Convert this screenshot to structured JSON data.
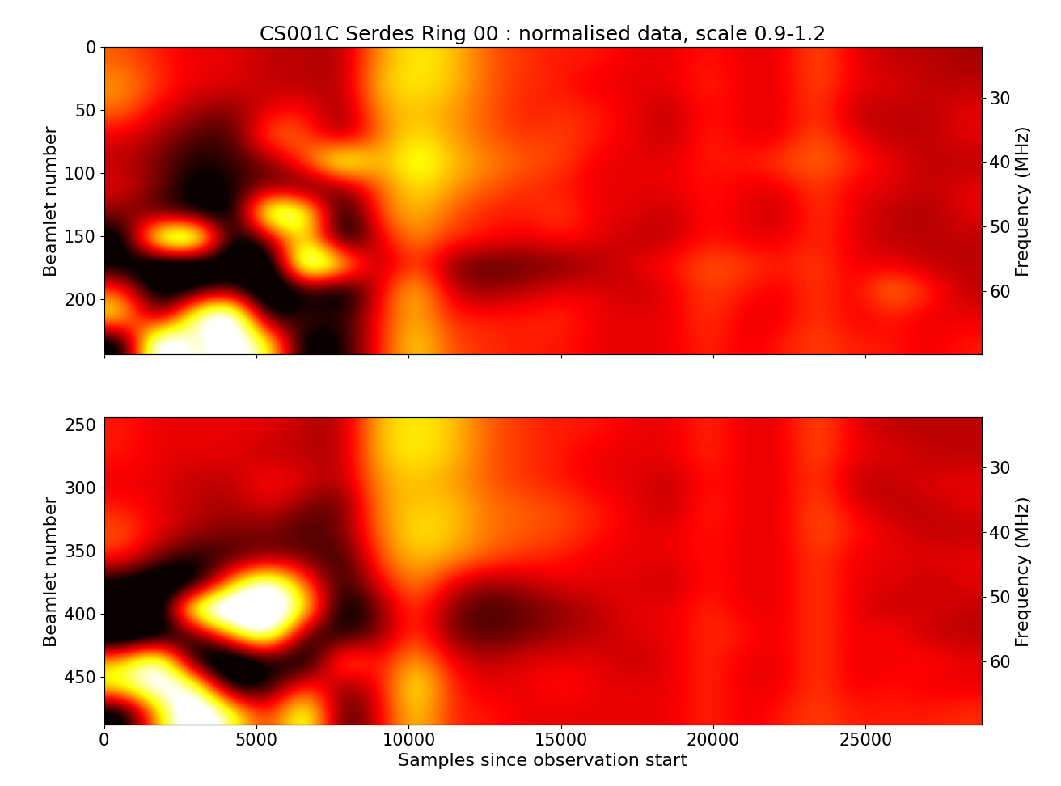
{
  "chart_data": [
    {
      "type": "heatmap",
      "title": "CS001C Serdes Ring 00 : normalised data, scale 0.9-1.2",
      "y_label": "Beamlet number",
      "y2_label": "Frequency (MHz)",
      "xlim": [
        0,
        28800
      ],
      "xticks": [
        0,
        5000,
        10000,
        15000,
        20000,
        25000
      ],
      "ylim": [
        244,
        0
      ],
      "yticks": [
        0,
        50,
        100,
        150,
        200
      ],
      "y2lim": [
        69.8,
        22.2
      ],
      "y2ticks": [
        30,
        40,
        50,
        60
      ],
      "tick_labels": "y",
      "grid": false,
      "color_range": [
        0.9,
        1.2
      ],
      "cells": [
        [
          1.05,
          1.02,
          1.0,
          1.0,
          0.98,
          0.98,
          0.97,
          1.08,
          1.12,
          1.1,
          1.05,
          1.03,
          1.02,
          1.02,
          1.0,
          1.0,
          1.02,
          1.0,
          1.0,
          1.05,
          1.0,
          0.98,
          0.98,
          0.97
        ],
        [
          1.08,
          1.03,
          1.0,
          1.0,
          0.98,
          0.98,
          0.97,
          1.1,
          1.12,
          1.1,
          1.05,
          1.03,
          1.02,
          1.0,
          1.0,
          1.0,
          1.03,
          1.0,
          1.0,
          1.05,
          1.0,
          1.0,
          0.98,
          0.98
        ],
        [
          1.06,
          1.0,
          0.97,
          0.95,
          1.0,
          1.02,
          0.95,
          1.08,
          1.1,
          1.08,
          1.05,
          1.02,
          1.03,
          1.02,
          1.0,
          0.98,
          1.02,
          1.0,
          1.0,
          1.04,
          0.98,
          0.98,
          0.98,
          1.0
        ],
        [
          1.0,
          0.97,
          0.93,
          0.92,
          1.07,
          1.05,
          0.95,
          1.06,
          1.12,
          1.08,
          1.05,
          1.03,
          1.04,
          1.02,
          1.0,
          0.98,
          1.03,
          1.0,
          1.0,
          1.05,
          1.0,
          0.98,
          0.98,
          1.0
        ],
        [
          0.98,
          0.95,
          0.9,
          0.92,
          0.95,
          1.05,
          1.2,
          1.08,
          1.15,
          1.1,
          1.07,
          1.05,
          1.04,
          1.0,
          1.0,
          1.0,
          1.02,
          1.02,
          1.04,
          1.06,
          1.03,
          1.0,
          0.98,
          0.98
        ],
        [
          1.0,
          0.95,
          0.88,
          0.9,
          0.95,
          0.9,
          0.95,
          1.05,
          1.12,
          1.08,
          1.05,
          1.03,
          1.02,
          1.0,
          1.0,
          1.0,
          1.02,
          1.0,
          1.0,
          1.04,
          1.0,
          1.0,
          0.98,
          1.0
        ],
        [
          0.96,
          0.92,
          0.88,
          0.85,
          1.25,
          1.2,
          0.85,
          1.05,
          1.1,
          1.05,
          1.02,
          1.02,
          1.04,
          1.0,
          1.0,
          0.98,
          1.02,
          1.0,
          0.98,
          1.04,
          1.0,
          0.98,
          0.97,
          1.0
        ],
        [
          0.85,
          1.25,
          1.3,
          0.85,
          0.95,
          1.15,
          0.85,
          1.0,
          1.08,
          1.03,
          1.02,
          1.0,
          1.02,
          1.0,
          0.98,
          0.98,
          1.02,
          1.0,
          1.0,
          1.03,
          1.0,
          0.98,
          0.98,
          0.98
        ],
        [
          0.88,
          0.8,
          0.8,
          0.85,
          0.8,
          1.3,
          1.15,
          0.95,
          1.05,
          0.95,
          0.93,
          0.94,
          0.95,
          0.97,
          1.0,
          1.02,
          1.05,
          1.04,
          1.02,
          1.04,
          1.0,
          1.0,
          0.98,
          0.98
        ],
        [
          1.05,
          0.85,
          0.9,
          0.95,
          0.8,
          0.9,
          0.85,
          1.0,
          1.12,
          0.98,
          0.96,
          0.98,
          1.0,
          1.0,
          0.98,
          1.0,
          1.04,
          1.02,
          1.0,
          1.04,
          1.0,
          1.08,
          1.03,
          0.98
        ],
        [
          1.15,
          0.9,
          1.2,
          1.3,
          0.85,
          0.95,
          0.9,
          1.02,
          1.1,
          1.02,
          1.02,
          1.02,
          1.03,
          1.0,
          1.0,
          1.0,
          1.04,
          1.0,
          1.0,
          1.04,
          1.0,
          1.02,
          1.0,
          1.0
        ],
        [
          0.85,
          1.3,
          1.15,
          1.25,
          1.15,
          0.85,
          0.9,
          1.02,
          1.12,
          1.04,
          1.03,
          1.02,
          1.02,
          1.0,
          1.0,
          1.0,
          1.03,
          1.0,
          1.02,
          1.04,
          1.02,
          1.02,
          1.0,
          1.02
        ]
      ]
    },
    {
      "type": "heatmap",
      "x_label": "Samples since observation start",
      "y_label": "Beamlet number",
      "y2_label": "Frequency (MHz)",
      "xlim": [
        0,
        28800
      ],
      "xticks": [
        0,
        5000,
        10000,
        15000,
        20000,
        25000
      ],
      "ylim": [
        488,
        244
      ],
      "yticks": [
        250,
        300,
        350,
        400,
        450
      ],
      "y2lim": [
        69.8,
        22.2
      ],
      "y2ticks": [
        30,
        40,
        50,
        60
      ],
      "grid": false,
      "color_range": [
        0.9,
        1.2
      ],
      "cells": [
        [
          1.02,
          1.0,
          1.0,
          1.0,
          1.0,
          0.98,
          0.97,
          1.1,
          1.12,
          1.1,
          1.05,
          1.03,
          1.02,
          1.02,
          1.0,
          1.0,
          1.03,
          1.0,
          1.0,
          1.05,
          1.0,
          0.98,
          0.98,
          0.98
        ],
        [
          1.02,
          1.0,
          1.0,
          1.0,
          0.98,
          0.98,
          0.97,
          1.1,
          1.12,
          1.1,
          1.05,
          1.03,
          1.02,
          1.0,
          1.0,
          1.0,
          1.03,
          1.0,
          1.0,
          1.05,
          1.0,
          1.0,
          0.98,
          0.98
        ],
        [
          1.0,
          1.0,
          0.98,
          0.98,
          1.02,
          1.0,
          0.97,
          1.08,
          1.1,
          1.08,
          1.05,
          1.03,
          1.02,
          1.0,
          1.0,
          0.98,
          1.02,
          1.0,
          1.0,
          1.04,
          0.98,
          0.98,
          1.0,
          1.0
        ],
        [
          1.02,
          1.0,
          0.98,
          0.97,
          1.0,
          0.95,
          0.93,
          1.08,
          1.1,
          1.1,
          1.06,
          1.05,
          1.04,
          1.02,
          1.0,
          0.98,
          1.03,
          1.0,
          1.0,
          1.05,
          1.0,
          0.98,
          0.98,
          1.0
        ],
        [
          1.05,
          1.0,
          0.97,
          0.95,
          0.95,
          0.92,
          0.95,
          1.06,
          1.12,
          1.1,
          1.06,
          1.05,
          1.04,
          1.02,
          1.0,
          1.0,
          1.02,
          1.0,
          1.0,
          1.05,
          1.02,
          1.0,
          0.98,
          0.98
        ],
        [
          1.03,
          0.95,
          0.9,
          0.92,
          0.95,
          0.95,
          0.9,
          1.05,
          1.1,
          1.08,
          1.05,
          1.03,
          1.02,
          1.0,
          1.0,
          1.0,
          1.02,
          1.0,
          1.0,
          1.04,
          1.0,
          1.0,
          1.0,
          1.0
        ],
        [
          0.88,
          0.82,
          0.85,
          1.1,
          1.25,
          1.05,
          0.9,
          1.0,
          1.08,
          1.0,
          0.96,
          0.98,
          1.0,
          1.0,
          1.0,
          0.98,
          1.02,
          1.0,
          1.0,
          1.04,
          1.0,
          1.0,
          0.98,
          1.0
        ],
        [
          0.82,
          0.85,
          1.25,
          1.3,
          1.3,
          1.15,
          0.85,
          0.95,
          1.05,
          0.95,
          0.92,
          0.94,
          0.96,
          0.98,
          1.0,
          1.0,
          1.03,
          1.0,
          1.0,
          1.04,
          1.0,
          0.98,
          1.0,
          0.98
        ],
        [
          0.8,
          0.85,
          0.9,
          1.1,
          1.25,
          0.9,
          0.9,
          0.95,
          1.05,
          0.95,
          0.93,
          0.95,
          0.97,
          0.98,
          1.0,
          1.0,
          1.03,
          1.02,
          1.0,
          1.04,
          1.0,
          1.02,
          0.98,
          0.98
        ],
        [
          1.1,
          1.25,
          0.85,
          0.8,
          0.9,
          0.85,
          1.1,
          1.0,
          1.1,
          1.0,
          0.98,
          1.0,
          1.0,
          1.0,
          0.98,
          1.0,
          1.03,
          1.0,
          1.0,
          1.04,
          1.0,
          1.0,
          1.02,
          1.0
        ],
        [
          1.15,
          1.25,
          1.2,
          0.85,
          0.9,
          1.05,
          0.95,
          1.0,
          1.15,
          1.02,
          1.0,
          1.0,
          1.02,
          1.0,
          1.0,
          1.0,
          1.03,
          1.0,
          1.0,
          1.04,
          1.0,
          1.02,
          1.0,
          1.0
        ],
        [
          0.85,
          1.1,
          1.3,
          1.15,
          1.0,
          1.2,
          0.9,
          1.0,
          1.12,
          1.02,
          1.02,
          1.0,
          1.0,
          1.0,
          1.0,
          1.0,
          1.03,
          1.0,
          1.02,
          1.04,
          1.02,
          1.02,
          1.02,
          1.03
        ]
      ]
    }
  ]
}
